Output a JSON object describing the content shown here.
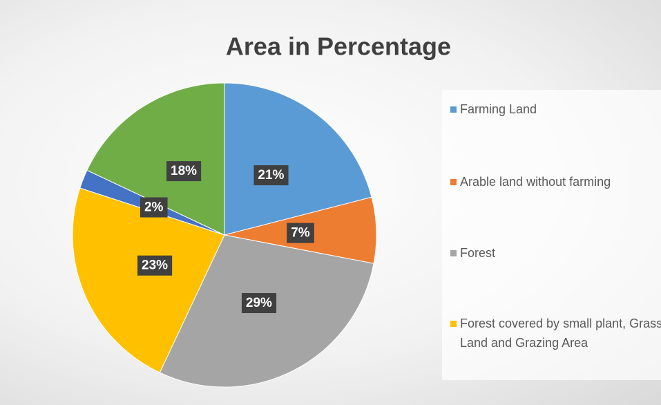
{
  "chart_data": {
    "type": "pie",
    "title": "Area in Percentage",
    "categories": [
      "Farming Land",
      "Arable land without farming",
      "Forest",
      "Forest covered by small plant, Grass Land  and Grazing Area",
      null,
      null
    ],
    "values": [
      21,
      7,
      29,
      23,
      2,
      18
    ],
    "value_labels": [
      "21%",
      "7%",
      "29%",
      "23%",
      "2%",
      "18%"
    ],
    "colors": [
      "#5b9bd5",
      "#ed7d31",
      "#a5a5a5",
      "#ffc000",
      "#4472c4",
      "#70ad47"
    ]
  }
}
